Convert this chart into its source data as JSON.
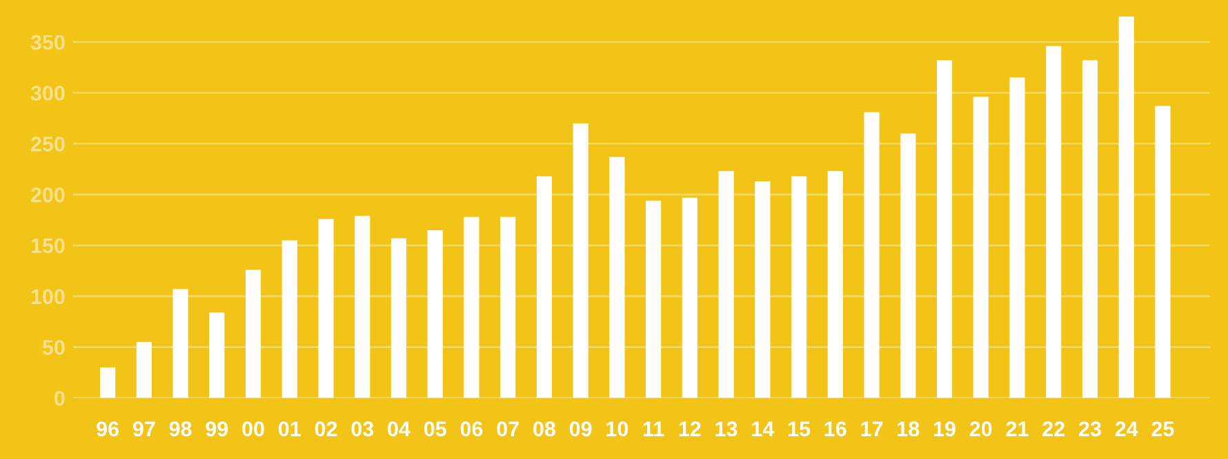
{
  "chart_data": {
    "type": "bar",
    "categories": [
      "96",
      "97",
      "98",
      "99",
      "00",
      "01",
      "02",
      "03",
      "04",
      "05",
      "06",
      "07",
      "08",
      "09",
      "10",
      "11",
      "12",
      "13",
      "14",
      "15",
      "16",
      "17",
      "18",
      "19",
      "20",
      "21",
      "22",
      "23",
      "24",
      "25"
    ],
    "values": [
      30,
      55,
      107,
      84,
      126,
      155,
      176,
      179,
      157,
      165,
      178,
      178,
      218,
      270,
      237,
      194,
      197,
      223,
      213,
      218,
      223,
      281,
      260,
      332,
      296,
      315,
      346,
      332,
      375,
      287
    ],
    "color": "#ffffff",
    "ylim": [
      0,
      375
    ],
    "yticks": [
      0,
      50,
      100,
      150,
      200,
      250,
      300,
      350
    ],
    "grid": "y",
    "legend": false
  }
}
